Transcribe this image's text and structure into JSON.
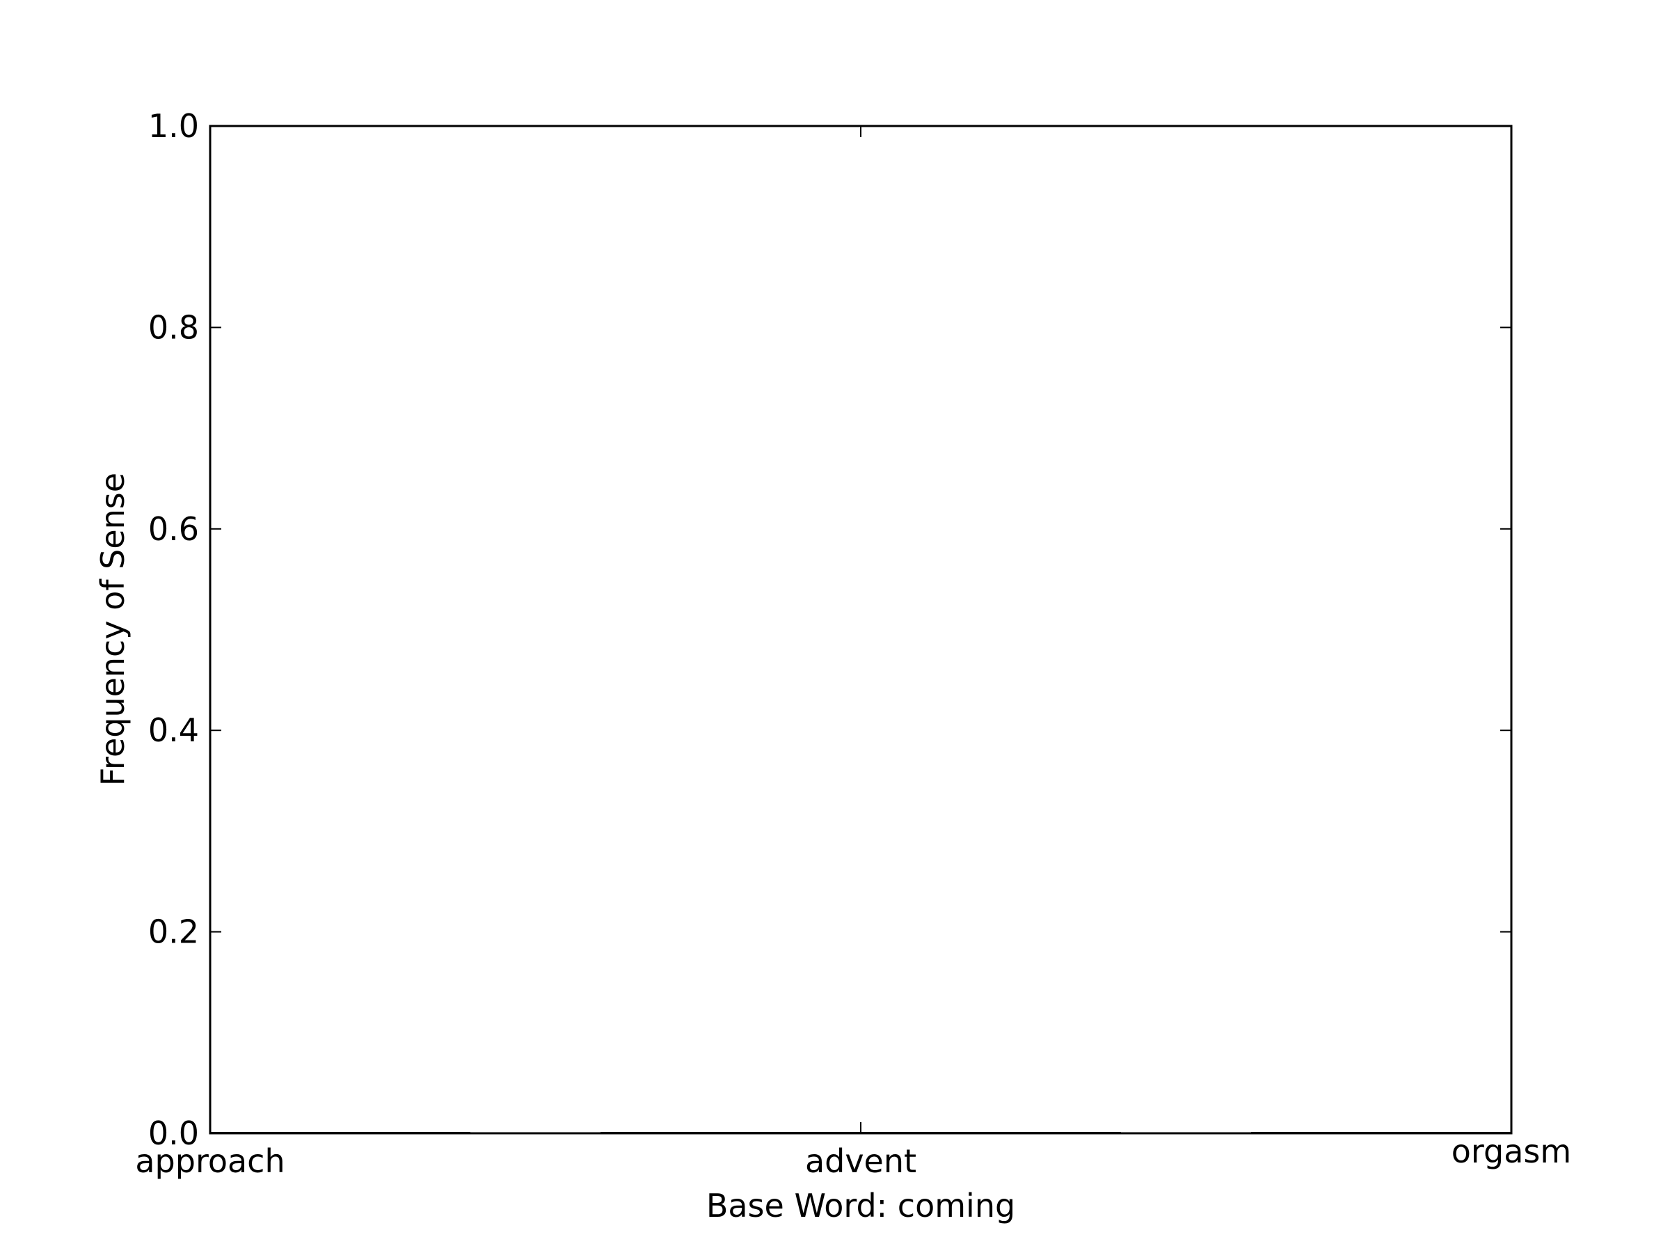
{
  "chart_data": {
    "type": "bar",
    "title": "",
    "xlabel": "Base Word: coming",
    "ylabel": "Frequency of Sense",
    "categories": [
      "approach",
      "advent",
      "orgasm"
    ],
    "values": [
      0.0,
      0.0,
      0.0
    ],
    "ylim": [
      0.0,
      1.0
    ],
    "yticks": [
      "0.0",
      "0.2",
      "0.4",
      "0.6",
      "0.8",
      "1.0"
    ],
    "grid": false,
    "legend": "none",
    "colors": {
      "axis": "#000000",
      "background": "#ffffff"
    }
  }
}
